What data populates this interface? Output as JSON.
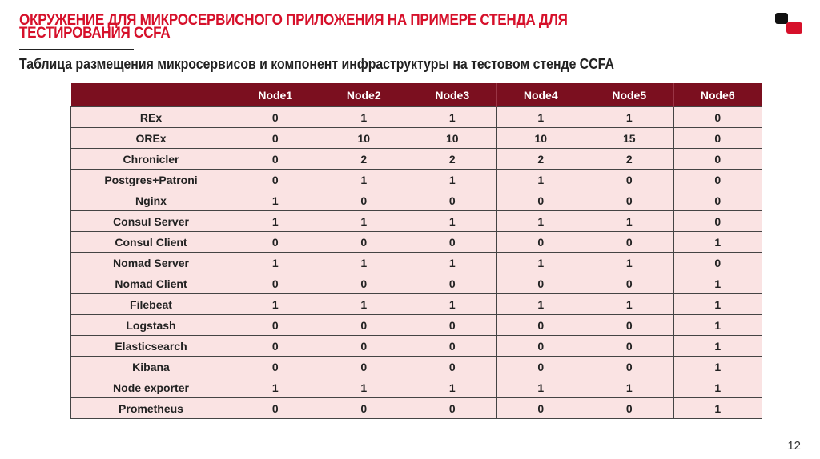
{
  "title": "ОКРУЖЕНИЕ ДЛЯ МИКРОСЕРВИСНОГО ПРИЛОЖЕНИЯ НА ПРИМЕРЕ СТЕНДА ДЛЯ ТЕСТИРОВАНИЯ CCFA",
  "subtitle": "Таблица размещения микросервисов и компонент инфраструктуры на тестовом стенде CCFA",
  "page_number": "12",
  "colors": {
    "accent": "#d6102a",
    "header_bg": "#7b0f1f",
    "row_bg": "#fae3e3"
  },
  "table": {
    "headers": [
      "",
      "Node1",
      "Node2",
      "Node3",
      "Node4",
      "Node5",
      "Node6"
    ],
    "rows": [
      [
        "REx",
        "0",
        "1",
        "1",
        "1",
        "1",
        "0"
      ],
      [
        "OREx",
        "0",
        "10",
        "10",
        "10",
        "15",
        "0"
      ],
      [
        "Chronicler",
        "0",
        "2",
        "2",
        "2",
        "2",
        "0"
      ],
      [
        "Postgres+Patroni",
        "0",
        "1",
        "1",
        "1",
        "0",
        "0"
      ],
      [
        "Nginx",
        "1",
        "0",
        "0",
        "0",
        "0",
        "0"
      ],
      [
        "Consul Server",
        "1",
        "1",
        "1",
        "1",
        "1",
        "0"
      ],
      [
        "Consul Client",
        "0",
        "0",
        "0",
        "0",
        "0",
        "1"
      ],
      [
        "Nomad Server",
        "1",
        "1",
        "1",
        "1",
        "1",
        "0"
      ],
      [
        "Nomad Client",
        "0",
        "0",
        "0",
        "0",
        "0",
        "1"
      ],
      [
        "Filebeat",
        "1",
        "1",
        "1",
        "1",
        "1",
        "1"
      ],
      [
        "Logstash",
        "0",
        "0",
        "0",
        "0",
        "0",
        "1"
      ],
      [
        "Elasticsearch",
        "0",
        "0",
        "0",
        "0",
        "0",
        "1"
      ],
      [
        "Kibana",
        "0",
        "0",
        "0",
        "0",
        "0",
        "1"
      ],
      [
        "Node exporter",
        "1",
        "1",
        "1",
        "1",
        "1",
        "1"
      ],
      [
        "Prometheus",
        "0",
        "0",
        "0",
        "0",
        "0",
        "1"
      ]
    ]
  }
}
